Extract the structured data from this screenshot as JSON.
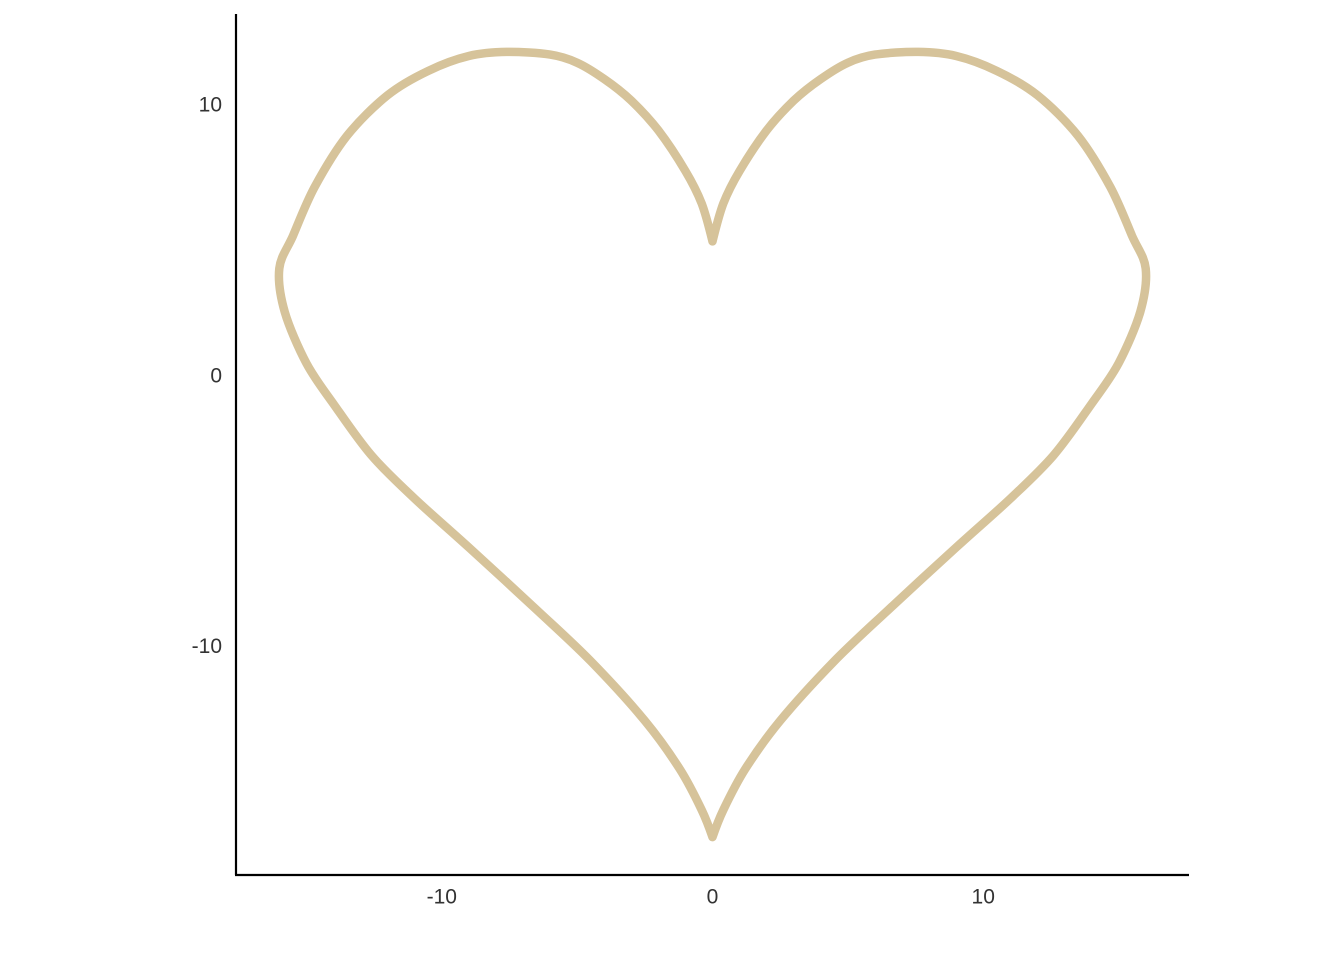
{
  "chart_data": {
    "type": "line",
    "title": "",
    "xlabel": "",
    "ylabel": "",
    "xlim": [
      -17.6,
      17.6
    ],
    "ylim": [
      -18.4,
      13.4
    ],
    "x_ticks": [
      -10,
      0,
      10
    ],
    "y_ticks": [
      -10,
      0,
      10
    ],
    "x_tick_labels": [
      "-10",
      "0",
      "10"
    ],
    "y_tick_labels": [
      "-10",
      "0",
      "10"
    ],
    "grid": false,
    "legend": "none",
    "series": [
      {
        "color": "#d6c39a",
        "points": [
          {
            "x": 0,
            "y": 5
          },
          {
            "x": 0.4,
            "y": 6.4
          },
          {
            "x": 1.0,
            "y": 7.6
          },
          {
            "x": 2.0,
            "y": 9.1
          },
          {
            "x": 3.0,
            "y": 10.2
          },
          {
            "x": 4.0,
            "y": 11.0
          },
          {
            "x": 5.0,
            "y": 11.6
          },
          {
            "x": 6.0,
            "y": 11.9
          },
          {
            "x": 7.6,
            "y": 12.0
          },
          {
            "x": 9.0,
            "y": 11.85
          },
          {
            "x": 10.5,
            "y": 11.3
          },
          {
            "x": 12.0,
            "y": 10.4
          },
          {
            "x": 13.5,
            "y": 8.9
          },
          {
            "x": 14.7,
            "y": 7.0
          },
          {
            "x": 15.5,
            "y": 5.2
          },
          {
            "x": 16.0,
            "y": 4.0
          },
          {
            "x": 15.8,
            "y": 2.4
          },
          {
            "x": 15.0,
            "y": 0.5
          },
          {
            "x": 14.0,
            "y": -1.0
          },
          {
            "x": 12.6,
            "y": -2.9
          },
          {
            "x": 11.0,
            "y": -4.5
          },
          {
            "x": 9.0,
            "y": -6.3
          },
          {
            "x": 6.5,
            "y": -8.6
          },
          {
            "x": 4.5,
            "y": -10.5
          },
          {
            "x": 2.5,
            "y": -12.7
          },
          {
            "x": 1.2,
            "y": -14.5
          },
          {
            "x": 0.4,
            "y": -16.0
          },
          {
            "x": 0,
            "y": -17
          },
          {
            "x": -0.4,
            "y": -16.0
          },
          {
            "x": -1.2,
            "y": -14.5
          },
          {
            "x": -2.5,
            "y": -12.7
          },
          {
            "x": -4.5,
            "y": -10.5
          },
          {
            "x": -6.5,
            "y": -8.6
          },
          {
            "x": -9.0,
            "y": -6.3
          },
          {
            "x": -11.0,
            "y": -4.5
          },
          {
            "x": -12.6,
            "y": -2.9
          },
          {
            "x": -14.0,
            "y": -1.0
          },
          {
            "x": -15.0,
            "y": 0.5
          },
          {
            "x": -15.8,
            "y": 2.4
          },
          {
            "x": -16.0,
            "y": 4.0
          },
          {
            "x": -15.5,
            "y": 5.2
          },
          {
            "x": -14.7,
            "y": 7.0
          },
          {
            "x": -13.5,
            "y": 8.9
          },
          {
            "x": -12.0,
            "y": 10.4
          },
          {
            "x": -10.5,
            "y": 11.3
          },
          {
            "x": -9.0,
            "y": 11.85
          },
          {
            "x": -7.6,
            "y": 12.0
          },
          {
            "x": -6.0,
            "y": 11.9
          },
          {
            "x": -5.0,
            "y": 11.6
          },
          {
            "x": -4.0,
            "y": 11.0
          },
          {
            "x": -3.0,
            "y": 10.2
          },
          {
            "x": -2.0,
            "y": 9.1
          },
          {
            "x": -1.0,
            "y": 7.6
          },
          {
            "x": -0.4,
            "y": 6.4
          },
          {
            "x": 0,
            "y": 5
          }
        ]
      }
    ]
  }
}
